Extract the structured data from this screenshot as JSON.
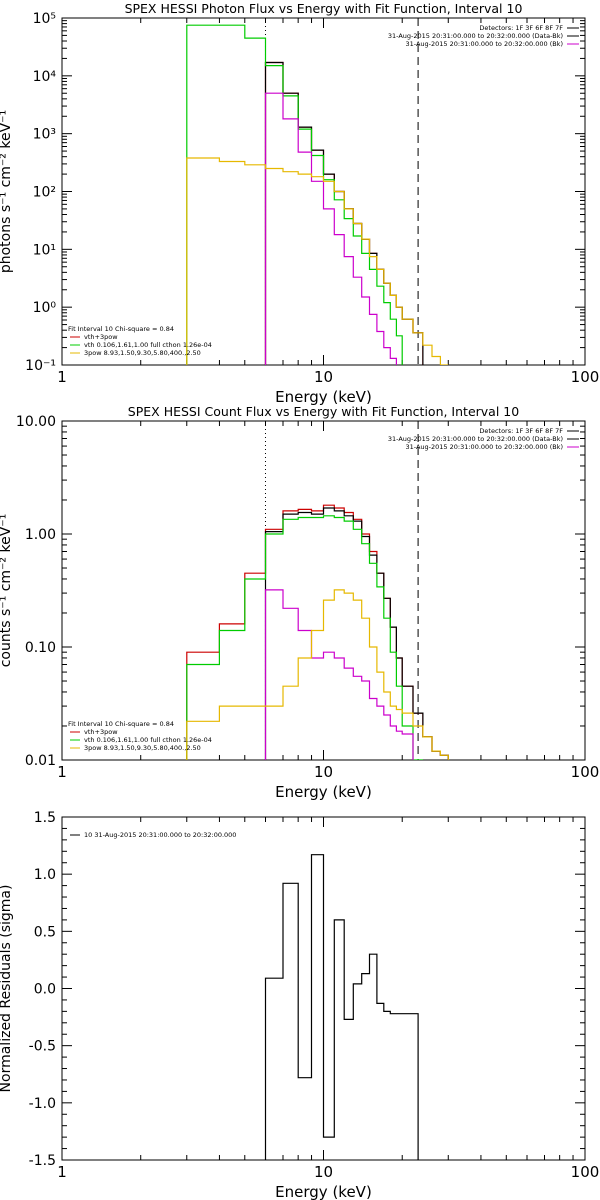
{
  "chart_data": [
    {
      "type": "line",
      "title": "SPEX HESSI Photon Flux vs Energy with Fit Function, Interval 10",
      "xlabel": "Energy (keV)",
      "ylabel": "photons s⁻¹ cm⁻² keV⁻¹",
      "xscale": "log",
      "yscale": "log",
      "xlim": [
        1,
        100
      ],
      "ylim": [
        0.1,
        100000
      ],
      "x_ticks": [
        1,
        10,
        100
      ],
      "x_tick_labels": [
        "1",
        "10",
        "100"
      ],
      "y_ticks": [
        0.1,
        1,
        10,
        100,
        1000,
        10000,
        100000
      ],
      "y_tick_labels": [
        "10⁻¹",
        "10⁰",
        "10¹",
        "10²",
        "10³",
        "10⁴",
        "10⁵"
      ],
      "header_lines": [
        "Detectors: 1F 3F 6F 8F 7F",
        "31-Aug-2015 20:31:00.000 to 20:32:00.000 (Data-Bk)",
        "31-Aug-2015 20:31:00.000 to 20:32:00.000 (Bk)"
      ],
      "header_colors": [
        "#000000",
        "#000000",
        "#cc00cc"
      ],
      "legend_lines": [
        "Fit Interval 10   Chi-square = 0.84",
        "vth+3pow",
        "vth 0.106,1.61,1.00  full cthon 1.26e-04",
        "3pow 8.93,1.50,9.30,5.80,400.,2.50"
      ],
      "legend_colors": [
        "",
        "#cc0000",
        "#00cc00",
        "#e6b800"
      ],
      "vlines": [
        {
          "x": 6.0,
          "style": "dotted"
        },
        {
          "x": 23.0,
          "style": "dashed"
        }
      ],
      "edges": [
        3,
        4,
        5,
        6,
        7,
        8,
        9,
        10,
        11,
        12,
        13,
        14,
        15,
        16,
        17,
        18,
        19,
        20,
        22,
        24,
        26,
        28,
        30
      ],
      "series": [
        {
          "color": "#cc0000",
          "values": [
            null,
            null,
            null,
            17000,
            5000,
            1300,
            520,
            200,
            100,
            50,
            28,
            15,
            8.5,
            4.5,
            2.6,
            1.6,
            1.0,
            0.62,
            0.36,
            null,
            null,
            null
          ]
        },
        {
          "color": "#000000",
          "values": [
            null,
            null,
            null,
            17000,
            5000,
            1300,
            520,
            200,
            100,
            50,
            28,
            15,
            8.5,
            4.5,
            2.6,
            1.6,
            1.0,
            0.62,
            0.36,
            null,
            null,
            null
          ]
        },
        {
          "color": "#00cc00",
          "values": [
            75000,
            75000,
            45000,
            15000,
            4500,
            1200,
            420,
            160,
            72,
            34,
            17,
            8.5,
            4.5,
            2.3,
            1.2,
            0.62,
            0.32,
            null,
            null,
            null,
            null,
            null
          ]
        },
        {
          "color": "#cc00cc",
          "values": [
            null,
            null,
            null,
            5000,
            1800,
            480,
            150,
            50,
            18,
            7.5,
            3.3,
            1.5,
            0.75,
            0.38,
            0.2,
            0.13,
            null,
            null,
            null,
            null,
            null,
            null
          ]
        },
        {
          "color": "#e6b800",
          "values": [
            380,
            330,
            290,
            250,
            220,
            200,
            180,
            150,
            100,
            50,
            28,
            15,
            7.5,
            4.5,
            2.6,
            1.6,
            1.0,
            0.62,
            0.36,
            0.22,
            0.14,
            0.1
          ]
        }
      ]
    },
    {
      "type": "line",
      "title": "SPEX HESSI Count Flux vs Energy with Fit Function, Interval 10",
      "xlabel": "Energy (keV)",
      "ylabel": "counts s⁻¹ cm⁻² keV⁻¹",
      "xscale": "log",
      "yscale": "log",
      "xlim": [
        1,
        100
      ],
      "ylim": [
        0.01,
        10
      ],
      "x_ticks": [
        1,
        10,
        100
      ],
      "x_tick_labels": [
        "1",
        "10",
        "100"
      ],
      "y_ticks": [
        0.01,
        0.1,
        1,
        10
      ],
      "y_tick_labels": [
        "0.01",
        "0.10",
        "1.00",
        "10.00"
      ],
      "header_lines": [
        "Detectors: 1F 3F 6F 8F 7F",
        "31-Aug-2015 20:31:00.000 to 20:32:00.000 (Data-Bk)",
        "31-Aug-2015 20:31:00.000 to 20:32:00.000 (Bk)"
      ],
      "header_colors": [
        "#000000",
        "#000000",
        "#cc00cc"
      ],
      "legend_lines": [
        "Fit Interval 10   Chi-square = 0.84",
        "vth+3pow",
        "vth 0.106,1.61,1.00  full cthon 1.26e-04",
        "3pow 8.93,1.50,9.30,5.80,400.,2.50"
      ],
      "legend_colors": [
        "",
        "#cc0000",
        "#00cc00",
        "#e6b800"
      ],
      "vlines": [
        {
          "x": 6.0,
          "style": "dotted"
        },
        {
          "x": 23.0,
          "style": "dashed"
        }
      ],
      "edges": [
        3,
        4,
        5,
        6,
        7,
        8,
        9,
        10,
        11,
        12,
        13,
        14,
        15,
        16,
        17,
        18,
        19,
        20,
        22,
        24,
        26,
        28,
        30
      ],
      "series": [
        {
          "color": "#cc0000",
          "values": [
            0.09,
            0.16,
            0.45,
            1.1,
            1.6,
            1.65,
            1.6,
            1.8,
            1.7,
            1.55,
            1.35,
            1.0,
            0.7,
            0.45,
            0.27,
            0.15,
            0.08,
            0.045,
            0.026,
            0.016,
            0.012,
            0.011
          ]
        },
        {
          "color": "#000000",
          "values": [
            null,
            null,
            null,
            1.05,
            1.5,
            1.55,
            1.5,
            1.7,
            1.6,
            1.45,
            1.3,
            0.95,
            0.65,
            0.45,
            0.27,
            0.15,
            0.08,
            0.045,
            0.026,
            0.016,
            0.012,
            0.011
          ]
        },
        {
          "color": "#00cc00",
          "values": [
            0.07,
            0.14,
            0.4,
            1.0,
            1.35,
            1.4,
            1.4,
            1.45,
            1.4,
            1.3,
            1.1,
            0.82,
            0.55,
            0.34,
            0.18,
            0.09,
            0.045,
            0.02,
            0.01,
            null,
            null,
            null
          ]
        },
        {
          "color": "#cc00cc",
          "values": [
            null,
            null,
            null,
            0.32,
            0.22,
            0.14,
            0.08,
            0.09,
            0.08,
            0.065,
            0.055,
            0.05,
            0.035,
            0.03,
            0.025,
            0.02,
            0.018,
            0.017,
            null,
            null,
            null,
            null
          ]
        },
        {
          "color": "#e6b800",
          "values": [
            0.022,
            0.03,
            0.03,
            0.03,
            0.045,
            0.08,
            0.14,
            0.26,
            0.32,
            0.3,
            0.26,
            0.18,
            0.1,
            0.06,
            0.04,
            0.03,
            0.028,
            0.026,
            0.02,
            0.016,
            0.012,
            0.011
          ]
        }
      ]
    },
    {
      "type": "line",
      "title": "",
      "xlabel": "Energy (keV)",
      "ylabel": "Normalized Residuals (sigma)",
      "xscale": "log",
      "xlim": [
        1,
        100
      ],
      "ylim": [
        -1.5,
        1.5
      ],
      "x_ticks": [
        1,
        10,
        100
      ],
      "x_tick_labels": [
        "1",
        "10",
        "100"
      ],
      "y_ticks": [
        -1.5,
        -1.0,
        -0.5,
        0.0,
        0.5,
        1.0,
        1.5
      ],
      "y_tick_labels": [
        "-1.5",
        "-1.0",
        "-0.5",
        "0.0",
        "0.5",
        "1.0",
        "1.5"
      ],
      "legend_lines": [
        "10  31-Aug-2015 20:31:00.000 to 20:32:00.000"
      ],
      "legend_colors": [
        "#000000"
      ],
      "edges": [
        6,
        7,
        8,
        9,
        10,
        11,
        12,
        13,
        14,
        15,
        16,
        17,
        18,
        19,
        20,
        22,
        23
      ],
      "series": [
        {
          "color": "#000000",
          "values": [
            0.09,
            0.92,
            -0.78,
            1.17,
            -1.3,
            0.6,
            -0.27,
            0.04,
            0.13,
            0.3,
            -0.13,
            -0.2,
            -0.22,
            -0.22,
            -0.22,
            -0.22
          ]
        }
      ]
    }
  ]
}
